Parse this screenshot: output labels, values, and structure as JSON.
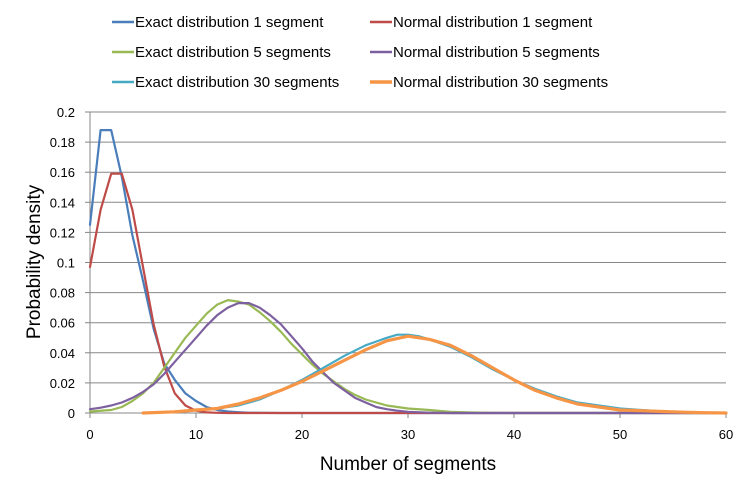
{
  "chart_data": {
    "type": "line",
    "title": "",
    "xlabel": "Number of segments",
    "ylabel": "Probability density",
    "xlim": [
      0,
      60
    ],
    "ylim": [
      0,
      0.2
    ],
    "x_ticks": [
      0,
      10,
      20,
      30,
      40,
      50,
      60
    ],
    "y_ticks": [
      0,
      0.02,
      0.04,
      0.06,
      0.08,
      0.1,
      0.12,
      0.14,
      0.16,
      0.18,
      0.2
    ],
    "y_tick_labels": [
      "0",
      "0.02",
      "0.04",
      "0.06",
      "0.08",
      "0.1",
      "0.12",
      "0.14",
      "0.16",
      "0.18",
      "0.2"
    ],
    "x_tick_labels": [
      "0",
      "10",
      "20",
      "30",
      "40",
      "50",
      "60"
    ],
    "grid": "horizontal",
    "legend_position": "top",
    "series": [
      {
        "name": "Exact distribution 1 segment",
        "color": "#4A7EBB",
        "stroke": 2.2,
        "points": [
          [
            0,
            0.125
          ],
          [
            1,
            0.188
          ],
          [
            2,
            0.188
          ],
          [
            3,
            0.157
          ],
          [
            4,
            0.118
          ],
          [
            5,
            0.088
          ],
          [
            6,
            0.056
          ],
          [
            7,
            0.033
          ],
          [
            8,
            0.022
          ],
          [
            9,
            0.013
          ],
          [
            10,
            0.008
          ],
          [
            11,
            0.004
          ],
          [
            12,
            0.002
          ],
          [
            13,
            0.001
          ],
          [
            14,
            0.0005
          ],
          [
            15,
            0.0002
          ],
          [
            18,
            0
          ],
          [
            60,
            0
          ]
        ]
      },
      {
        "name": "Normal distribution 1 segment",
        "color": "#BE4B48",
        "stroke": 2.2,
        "points": [
          [
            0,
            0.097
          ],
          [
            1,
            0.135
          ],
          [
            2,
            0.159
          ],
          [
            3,
            0.159
          ],
          [
            4,
            0.135
          ],
          [
            5,
            0.097
          ],
          [
            6,
            0.059
          ],
          [
            7,
            0.031
          ],
          [
            8,
            0.013
          ],
          [
            9,
            0.005
          ],
          [
            10,
            0.0015
          ],
          [
            11,
            0.0004
          ],
          [
            12,
            0.0001
          ],
          [
            13,
            0
          ],
          [
            60,
            0
          ]
        ]
      },
      {
        "name": "Exact distribution 5 segments",
        "color": "#98B954",
        "stroke": 2.2,
        "points": [
          [
            0,
            0.001
          ],
          [
            2,
            0.002
          ],
          [
            3,
            0.004
          ],
          [
            4,
            0.008
          ],
          [
            5,
            0.013
          ],
          [
            6,
            0.02
          ],
          [
            7,
            0.03
          ],
          [
            8,
            0.04
          ],
          [
            9,
            0.05
          ],
          [
            10,
            0.058
          ],
          [
            11,
            0.066
          ],
          [
            12,
            0.072
          ],
          [
            13,
            0.075
          ],
          [
            14,
            0.074
          ],
          [
            15,
            0.072
          ],
          [
            16,
            0.067
          ],
          [
            17,
            0.061
          ],
          [
            18,
            0.054
          ],
          [
            19,
            0.046
          ],
          [
            20,
            0.039
          ],
          [
            21,
            0.032
          ],
          [
            22,
            0.026
          ],
          [
            23,
            0.021
          ],
          [
            24,
            0.016
          ],
          [
            25,
            0.012
          ],
          [
            26,
            0.009
          ],
          [
            27,
            0.007
          ],
          [
            28,
            0.005
          ],
          [
            29,
            0.004
          ],
          [
            30,
            0.003
          ],
          [
            32,
            0.002
          ],
          [
            34,
            0.0008
          ],
          [
            36,
            0.0003
          ],
          [
            38,
            0.0001
          ],
          [
            40,
            0
          ],
          [
            60,
            0
          ]
        ]
      },
      {
        "name": "Normal distribution 5 segments",
        "color": "#7D60A0",
        "stroke": 2.2,
        "points": [
          [
            0,
            0.0025
          ],
          [
            1,
            0.0035
          ],
          [
            2,
            0.005
          ],
          [
            3,
            0.007
          ],
          [
            4,
            0.01
          ],
          [
            5,
            0.014
          ],
          [
            6,
            0.019
          ],
          [
            7,
            0.026
          ],
          [
            8,
            0.034
          ],
          [
            9,
            0.042
          ],
          [
            10,
            0.05
          ],
          [
            11,
            0.058
          ],
          [
            12,
            0.065
          ],
          [
            13,
            0.07
          ],
          [
            14,
            0.073
          ],
          [
            15,
            0.073
          ],
          [
            16,
            0.07
          ],
          [
            17,
            0.065
          ],
          [
            18,
            0.059
          ],
          [
            19,
            0.051
          ],
          [
            20,
            0.043
          ],
          [
            21,
            0.034
          ],
          [
            22,
            0.027
          ],
          [
            23,
            0.02
          ],
          [
            24,
            0.015
          ],
          [
            25,
            0.01
          ],
          [
            26,
            0.007
          ],
          [
            27,
            0.004
          ],
          [
            28,
            0.0025
          ],
          [
            29,
            0.0015
          ],
          [
            30,
            0.0008
          ],
          [
            32,
            0.0002
          ],
          [
            34,
            0
          ],
          [
            60,
            0
          ]
        ]
      },
      {
        "name": "Exact distribution 30 segments",
        "color": "#46AAC5",
        "stroke": 2.2,
        "points": [
          [
            5,
            0
          ],
          [
            8,
            0.001
          ],
          [
            10,
            0.002
          ],
          [
            12,
            0.003
          ],
          [
            14,
            0.005
          ],
          [
            16,
            0.009
          ],
          [
            18,
            0.015
          ],
          [
            20,
            0.022
          ],
          [
            22,
            0.03
          ],
          [
            24,
            0.038
          ],
          [
            26,
            0.045
          ],
          [
            28,
            0.05
          ],
          [
            29,
            0.052
          ],
          [
            30,
            0.052
          ],
          [
            31,
            0.051
          ],
          [
            32,
            0.049
          ],
          [
            34,
            0.044
          ],
          [
            36,
            0.037
          ],
          [
            38,
            0.029
          ],
          [
            40,
            0.022
          ],
          [
            42,
            0.016
          ],
          [
            44,
            0.011
          ],
          [
            46,
            0.007
          ],
          [
            48,
            0.005
          ],
          [
            50,
            0.003
          ],
          [
            52,
            0.002
          ],
          [
            54,
            0.001
          ],
          [
            56,
            0.0005
          ],
          [
            58,
            0.0002
          ],
          [
            60,
            0
          ]
        ]
      },
      {
        "name": "Normal distribution 30 segments",
        "color": "#F69546",
        "stroke": 3.2,
        "points": [
          [
            5,
            0
          ],
          [
            8,
            0.0008
          ],
          [
            10,
            0.002
          ],
          [
            12,
            0.003
          ],
          [
            14,
            0.006
          ],
          [
            16,
            0.01
          ],
          [
            18,
            0.015
          ],
          [
            20,
            0.021
          ],
          [
            22,
            0.028
          ],
          [
            24,
            0.035
          ],
          [
            26,
            0.042
          ],
          [
            28,
            0.048
          ],
          [
            30,
            0.051
          ],
          [
            32,
            0.049
          ],
          [
            34,
            0.045
          ],
          [
            36,
            0.038
          ],
          [
            38,
            0.03
          ],
          [
            40,
            0.022
          ],
          [
            42,
            0.015
          ],
          [
            44,
            0.01
          ],
          [
            46,
            0.006
          ],
          [
            48,
            0.004
          ],
          [
            50,
            0.002
          ],
          [
            52,
            0.0015
          ],
          [
            54,
            0.001
          ],
          [
            56,
            0.0005
          ],
          [
            58,
            0.0002
          ],
          [
            60,
            0
          ]
        ]
      }
    ]
  }
}
